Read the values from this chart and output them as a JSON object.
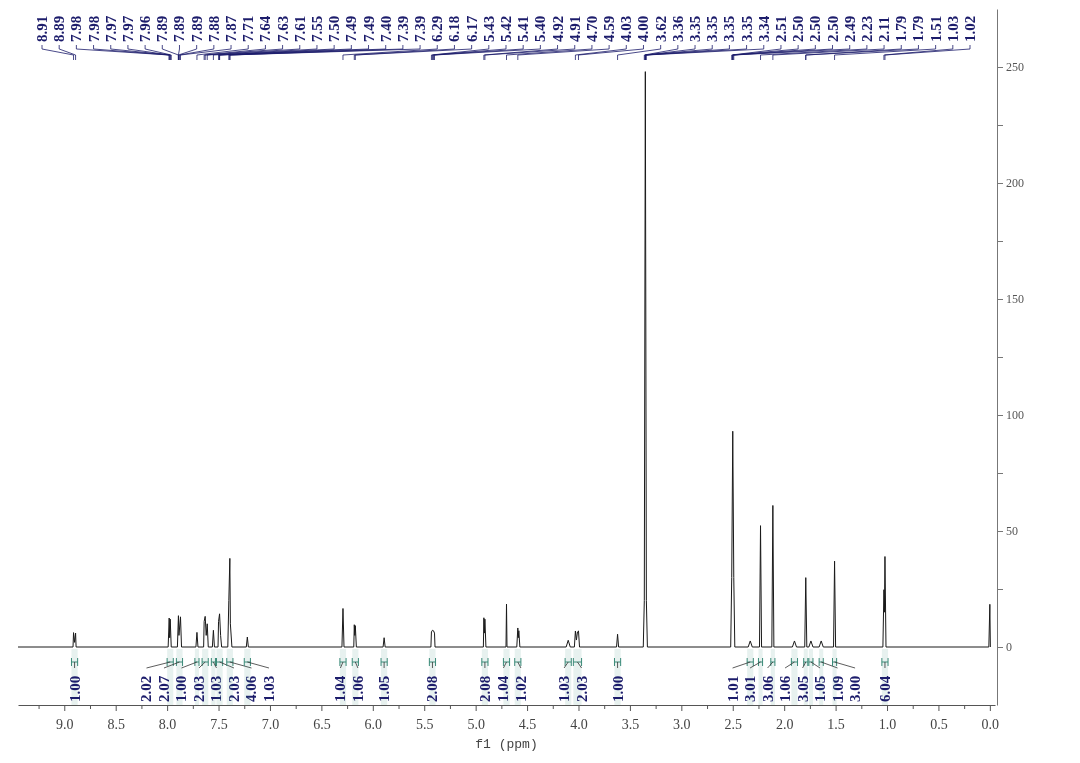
{
  "chart_data": {
    "type": "line",
    "xlabel": "f1 (ppm)",
    "xlim": [
      9.45,
      -0.05
    ],
    "ylim": [
      -25,
      275
    ],
    "xticks": [
      {
        "value": 9.25,
        "label": null
      },
      {
        "value": 9,
        "label": "9.0"
      },
      {
        "value": 8.75,
        "label": null
      },
      {
        "value": 8.5,
        "label": "8.5"
      },
      {
        "value": 8.25,
        "label": null
      },
      {
        "value": 8,
        "label": "8.0"
      },
      {
        "value": 7.75,
        "label": null
      },
      {
        "value": 7.5,
        "label": "7.5"
      },
      {
        "value": 7.25,
        "label": null
      },
      {
        "value": 7,
        "label": "7.0"
      },
      {
        "value": 6.75,
        "label": null
      },
      {
        "value": 6.5,
        "label": "6.5"
      },
      {
        "value": 6.25,
        "label": null
      },
      {
        "value": 6,
        "label": "6.0"
      },
      {
        "value": 5.75,
        "label": null
      },
      {
        "value": 5.5,
        "label": "5.5"
      },
      {
        "value": 5.25,
        "label": null
      },
      {
        "value": 5,
        "label": "5.0"
      },
      {
        "value": 4.75,
        "label": null
      },
      {
        "value": 4.5,
        "label": "4.5"
      },
      {
        "value": 4.25,
        "label": null
      },
      {
        "value": 4,
        "label": "4.0"
      },
      {
        "value": 3.75,
        "label": null
      },
      {
        "value": 3.5,
        "label": "3.5"
      },
      {
        "value": 3.25,
        "label": null
      },
      {
        "value": 3,
        "label": "3.0"
      },
      {
        "value": 2.75,
        "label": null
      },
      {
        "value": 2.5,
        "label": "2.5"
      },
      {
        "value": 2.25,
        "label": null
      },
      {
        "value": 2,
        "label": "2.0"
      },
      {
        "value": 1.75,
        "label": null
      },
      {
        "value": 1.5,
        "label": "1.5"
      },
      {
        "value": 1.25,
        "label": null
      },
      {
        "value": 1,
        "label": "1.0"
      },
      {
        "value": 0.75,
        "label": null
      },
      {
        "value": 0.5,
        "label": "0.5"
      },
      {
        "value": 0.25,
        "label": null
      },
      {
        "value": 0,
        "label": "0.0"
      }
    ],
    "yticks": [
      0,
      {
        "value": 25,
        "label": null
      },
      50,
      {
        "value": 75,
        "label": null
      },
      100,
      {
        "value": 125,
        "label": null
      },
      150,
      {
        "value": 175,
        "label": null
      },
      200,
      {
        "value": 225,
        "label": null
      },
      250
    ],
    "series": [
      {
        "color": "#1a1a1a",
        "x": [
          9.45,
          8.915,
          8.91,
          8.9,
          8.89,
          8.885,
          7.99,
          7.98,
          7.975,
          7.97,
          7.96,
          7.9,
          7.89,
          7.885,
          7.87,
          7.86,
          7.72,
          7.71,
          7.7,
          7.645,
          7.64,
          7.63,
          7.62,
          7.61,
          7.6,
          7.56,
          7.55,
          7.54,
          7.505,
          7.5,
          7.49,
          7.48,
          7.47,
          7.41,
          7.4,
          7.39,
          7.385,
          7.37,
          7.23,
          7.22,
          7.21,
          6.3,
          6.29,
          6.28,
          6.185,
          6.18,
          6.175,
          6.17,
          6.16,
          5.9,
          5.89,
          5.88,
          5.435,
          5.43,
          5.42,
          5.41,
          5.4,
          5.395,
          4.925,
          4.92,
          4.915,
          4.91,
          4.9,
          4.705,
          4.7,
          4.695,
          4.6,
          4.59,
          4.585,
          4.58,
          4.57,
          4.12,
          4.1,
          4.08,
          4.04,
          4.03,
          4.02,
          4.01,
          4.0,
          3.99,
          3.63,
          3.62,
          3.61,
          3.37,
          3.36,
          3.35,
          3.34,
          3.33,
          2.52,
          2.51,
          2.5,
          2.49,
          2.48,
          2.35,
          2.33,
          2.31,
          2.24,
          2.23,
          2.22,
          2.12,
          2.11,
          2.1,
          1.92,
          1.9,
          1.88,
          1.8,
          1.79,
          1.78,
          1.76,
          1.74,
          1.72,
          1.66,
          1.64,
          1.62,
          1.52,
          1.51,
          1.5,
          1.04,
          1.03,
          1.025,
          1.02,
          1.01,
          0.01,
          0.0,
          -0.005
        ],
        "values": [
          0,
          0,
          6.2,
          2,
          6,
          0,
          0,
          12.5,
          4,
          12,
          0,
          0,
          13.5,
          5,
          13,
          0,
          0,
          6.3,
          0,
          0,
          11,
          13.2,
          5,
          10,
          0,
          0,
          7.2,
          0,
          0,
          11,
          14.3,
          5,
          0,
          0,
          20,
          38.2,
          10,
          0,
          0,
          4.3,
          0,
          0,
          16.6,
          0,
          0,
          9.6,
          5,
          9.2,
          0,
          0,
          4,
          0,
          0,
          6.5,
          7.2,
          7,
          6,
          0,
          0,
          12.6,
          6,
          12,
          0,
          0,
          18.5,
          0,
          0,
          8.2,
          4,
          7,
          0,
          0,
          2.9,
          0,
          0,
          6.9,
          3,
          6.5,
          6.9,
          0,
          0,
          5.5,
          0,
          0,
          20,
          248,
          20,
          0,
          0,
          30,
          93,
          30,
          0,
          0,
          2.6,
          0,
          0,
          52.3,
          0,
          0,
          61,
          0,
          0,
          2.6,
          0,
          0,
          29.9,
          0,
          0,
          2.6,
          0,
          0,
          2.6,
          0,
          0,
          37,
          0,
          0,
          24.7,
          15,
          39,
          0,
          0,
          18.4,
          0
        ]
      }
    ],
    "annotations": [
      "8.91",
      "8.89",
      "7.98",
      "7.98",
      "7.97",
      "7.97",
      "7.96",
      "7.89",
      "7.89",
      "7.89",
      "7.88",
      "7.87",
      "7.71",
      "7.64",
      "7.63",
      "7.61",
      "7.55",
      "7.50",
      "7.49",
      "7.49",
      "7.40",
      "7.39",
      "7.39",
      "6.29",
      "6.18",
      "6.17",
      "5.43",
      "5.42",
      "5.41",
      "5.40",
      "4.92",
      "4.91",
      "4.70",
      "4.59",
      "4.03",
      "4.00",
      "3.62",
      "3.36",
      "3.35",
      "3.35",
      "3.35",
      "3.35",
      "3.34",
      "2.51",
      "2.50",
      "2.50",
      "2.50",
      "2.49",
      "2.23",
      "2.11",
      "1.79",
      "1.79",
      "1.51",
      "1.03",
      "1.02"
    ],
    "bands": [
      {
        "axis": "x",
        "from": 8.93,
        "to": 8.87,
        "label": "1.00"
      },
      {
        "axis": "x",
        "from": 8.0,
        "to": 7.94,
        "label": "2.02"
      },
      {
        "axis": "x",
        "from": 7.91,
        "to": 7.85,
        "label": "2.07"
      },
      {
        "axis": "x",
        "from": 7.73,
        "to": 7.69,
        "label": "1.00"
      },
      {
        "axis": "x",
        "from": 7.66,
        "to": 7.6,
        "label": "2.03"
      },
      {
        "axis": "x",
        "from": 7.57,
        "to": 7.53,
        "label": "1.03"
      },
      {
        "axis": "x",
        "from": 7.52,
        "to": 7.46,
        "label": "2.03"
      },
      {
        "axis": "x",
        "from": 7.42,
        "to": 7.36,
        "label": "4.06"
      },
      {
        "axis": "x",
        "from": 7.25,
        "to": 7.19,
        "label": "1.03"
      },
      {
        "axis": "x",
        "from": 6.32,
        "to": 6.26,
        "label": "1.04"
      },
      {
        "axis": "x",
        "from": 6.2,
        "to": 6.14,
        "label": "1.06"
      },
      {
        "axis": "x",
        "from": 5.92,
        "to": 5.86,
        "label": "1.05"
      },
      {
        "axis": "x",
        "from": 5.45,
        "to": 5.39,
        "label": "2.08"
      },
      {
        "axis": "x",
        "from": 4.94,
        "to": 4.88,
        "label": "2.08"
      },
      {
        "axis": "x",
        "from": 4.73,
        "to": 4.67,
        "label": "1.04"
      },
      {
        "axis": "x",
        "from": 4.62,
        "to": 4.56,
        "label": "1.02"
      },
      {
        "axis": "x",
        "from": 4.13,
        "to": 4.07,
        "label": "1.03"
      },
      {
        "axis": "x",
        "from": 4.05,
        "to": 3.97,
        "label": "2.03"
      },
      {
        "axis": "x",
        "from": 3.65,
        "to": 3.59,
        "label": "1.00"
      },
      {
        "axis": "x",
        "from": 2.36,
        "to": 2.3,
        "label": "1.01"
      },
      {
        "axis": "x",
        "from": 2.25,
        "to": 2.21,
        "label": "3.01"
      },
      {
        "axis": "x",
        "from": 2.13,
        "to": 2.09,
        "label": "3.06"
      },
      {
        "axis": "x",
        "from": 1.93,
        "to": 1.87,
        "label": "1.06"
      },
      {
        "axis": "x",
        "from": 1.81,
        "to": 1.77,
        "label": "3.05"
      },
      {
        "axis": "x",
        "from": 1.76,
        "to": 1.72,
        "label": "1.05"
      },
      {
        "axis": "x",
        "from": 1.66,
        "to": 1.62,
        "label": "1.09"
      },
      {
        "axis": "x",
        "from": 1.53,
        "to": 1.49,
        "label": "3.00"
      },
      {
        "axis": "x",
        "from": 1.05,
        "to": 0.99,
        "label": "6.04"
      }
    ]
  }
}
